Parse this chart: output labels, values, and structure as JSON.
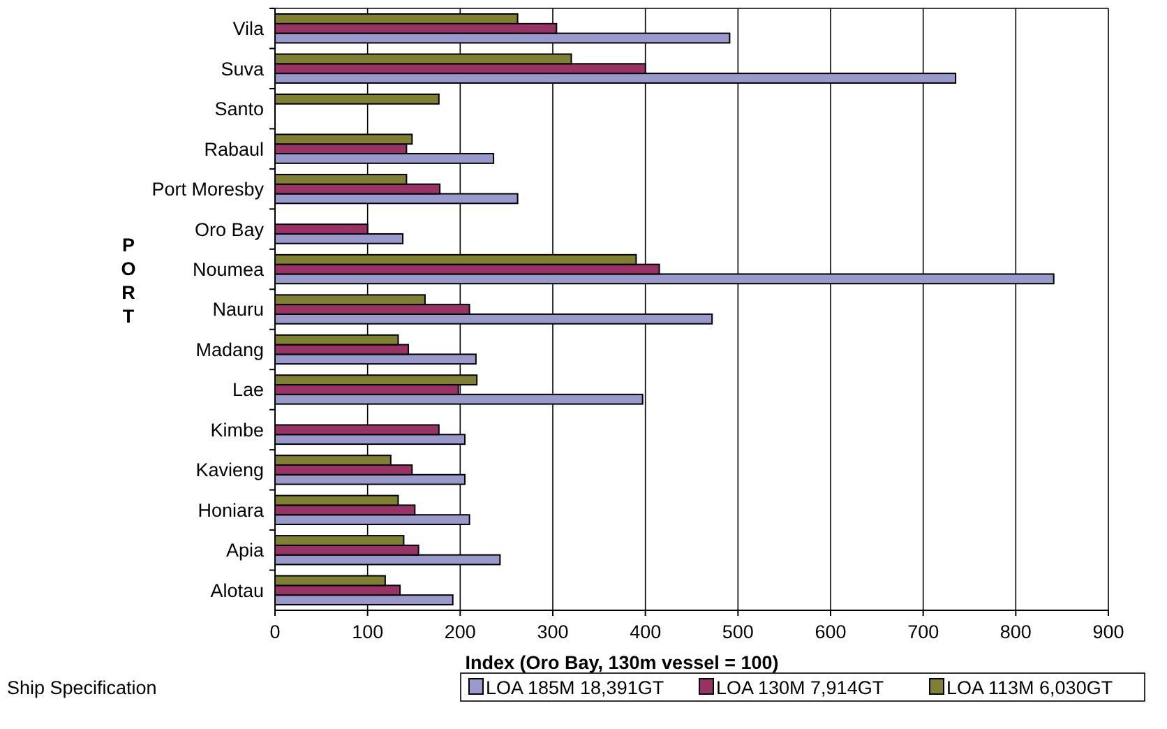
{
  "chart_data": {
    "type": "bar",
    "orientation": "horizontal",
    "xlabel": "Index (Oro Bay, 130m vessel = 100)",
    "ylabel": "PORT",
    "legend_title": "Ship Specification",
    "legend": "bottom",
    "grid": "x",
    "categories": [
      "Vila",
      "Suva",
      "Santo",
      "Rabaul",
      "Port Moresby",
      "Oro Bay",
      "Noumea",
      "Nauru",
      "Madang",
      "Lae",
      "Kimbe",
      "Kavieng",
      "Honiara",
      "Apia",
      "Alotau"
    ],
    "xlim": [
      0,
      900
    ],
    "xticks": [
      0,
      100,
      200,
      300,
      400,
      500,
      600,
      700,
      800,
      900
    ],
    "series": [
      {
        "name": "LOA 185M 18,391GT",
        "color": "#9999cc",
        "values": [
          491,
          735,
          null,
          236,
          262,
          138,
          841,
          472,
          217,
          397,
          205,
          205,
          210,
          243,
          192
        ]
      },
      {
        "name": "LOA 130M 7,914GT",
        "color": "#993366",
        "values": [
          304,
          400,
          null,
          142,
          178,
          100,
          415,
          210,
          144,
          198,
          177,
          148,
          151,
          155,
          135
        ]
      },
      {
        "name": "LOA 113M 6,030GT",
        "color": "#808033",
        "values": [
          262,
          320,
          177,
          148,
          142,
          null,
          390,
          162,
          133,
          218,
          null,
          125,
          133,
          139,
          119
        ]
      }
    ]
  }
}
